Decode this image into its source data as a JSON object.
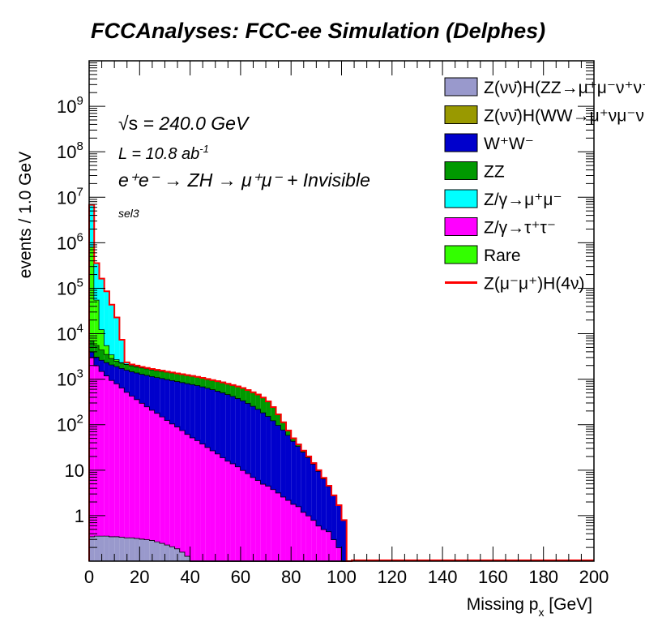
{
  "chart_data": {
    "type": "bar",
    "stacked": true,
    "log_y": true,
    "title": "FCCAnalyses: FCC-ee Simulation (Delphes)",
    "xlabel": "Missing p",
    "xlabel_sub": "x",
    "xlabel_unit": "[GeV]",
    "ylabel": "events / 1.0 GeV",
    "xlim": [
      0,
      200
    ],
    "ylim": [
      0.1,
      10000000000
    ],
    "x_ticks": [
      "0",
      "20",
      "40",
      "60",
      "80",
      "100",
      "120",
      "140",
      "160",
      "180",
      "200"
    ],
    "y_ticks": [
      {
        "base": "10",
        "exp": "9",
        "value": 1000000000
      },
      {
        "base": "10",
        "exp": "8",
        "value": 100000000
      },
      {
        "base": "10",
        "exp": "7",
        "value": 10000000
      },
      {
        "base": "10",
        "exp": "6",
        "value": 1000000
      },
      {
        "base": "10",
        "exp": "5",
        "value": 100000
      },
      {
        "base": "10",
        "exp": "4",
        "value": 10000
      },
      {
        "base": "10",
        "exp": "3",
        "value": 1000
      },
      {
        "base": "10",
        "exp": "2",
        "value": 100
      },
      {
        "base": "10",
        "exp": "",
        "value": 10
      },
      {
        "base": "1",
        "exp": "",
        "value": 1
      }
    ],
    "annotations": {
      "sqrts_prefix": "√s",
      "sqrts_rest": " = 240.0 GeV",
      "lumi_main": "L = 10.8 ab",
      "lumi_exp": "-1",
      "process": "e⁺e⁻ → ZH → μ⁺μ⁻ + Invisible",
      "selection": "sel3"
    },
    "bin_edges_note": "bins of 2 GeV, x from 0 to 104",
    "x": [
      0,
      2,
      4,
      6,
      8,
      10,
      12,
      14,
      16,
      18,
      20,
      22,
      24,
      26,
      28,
      30,
      32,
      34,
      36,
      38,
      40,
      42,
      44,
      46,
      48,
      50,
      52,
      54,
      56,
      58,
      60,
      62,
      64,
      66,
      68,
      70,
      72,
      74,
      76,
      78,
      80,
      82,
      84,
      86,
      88,
      90,
      92,
      94,
      96,
      98,
      100,
      102
    ],
    "series": [
      {
        "name": "Z(νν̄)H(ZZ→μ⁺μ⁻ν⁺ν⁻)",
        "color": "#9999cc",
        "values": [
          0.35,
          0.36,
          0.36,
          0.36,
          0.35,
          0.35,
          0.34,
          0.33,
          0.33,
          0.32,
          0.31,
          0.3,
          0.29,
          0.27,
          0.25,
          0.23,
          0.21,
          0.19,
          0.16,
          0.13,
          0.1,
          0,
          0,
          0,
          0,
          0,
          0,
          0,
          0,
          0,
          0,
          0,
          0,
          0,
          0,
          0,
          0,
          0,
          0,
          0,
          0,
          0,
          0,
          0,
          0,
          0,
          0,
          0,
          0,
          0,
          0,
          0
        ]
      },
      {
        "name": "Z(νν̄)H(WW→μ⁺νμ⁻ν)",
        "color": "#999900",
        "values": [
          0,
          0,
          0,
          0,
          0,
          0,
          0,
          0,
          0,
          0,
          0,
          0,
          0,
          0,
          0,
          0,
          0,
          0,
          0,
          0,
          0,
          0,
          0,
          0,
          0,
          0,
          0,
          0,
          0,
          0,
          0,
          0,
          0,
          0,
          0,
          0,
          0,
          0,
          0,
          0,
          0,
          0,
          0,
          0,
          0,
          0,
          0,
          0,
          0,
          0,
          0,
          0
        ]
      },
      {
        "name": "Z/γ→τ⁺τ⁻",
        "color": "#ff00ff",
        "values": [
          3000,
          2000,
          1500,
          1200,
          950,
          800,
          650,
          520,
          430,
          360,
          300,
          250,
          210,
          180,
          150,
          125,
          105,
          90,
          75,
          62,
          52,
          45,
          38,
          32,
          27,
          23,
          19,
          16,
          14,
          12,
          10,
          8.5,
          7,
          6,
          5,
          4.5,
          3.8,
          3.2,
          2.6,
          2.2,
          1.8,
          1.6,
          1.2,
          1.0,
          0.8,
          0.6,
          0.5,
          0.45,
          0.3,
          0.2,
          0,
          0
        ]
      },
      {
        "name": "W⁺W⁻",
        "color": "#0000cc",
        "values": [
          1000,
          1100,
          1150,
          1150,
          1140,
          1120,
          1100,
          1080,
          1050,
          1030,
          1000,
          980,
          950,
          920,
          900,
          870,
          840,
          810,
          780,
          750,
          720,
          690,
          650,
          610,
          570,
          530,
          490,
          450,
          410,
          370,
          330,
          290,
          250,
          215,
          180,
          150,
          120,
          95,
          75,
          57,
          42,
          32,
          24,
          18,
          13,
          9,
          6,
          4,
          2.5,
          1.5,
          0.8,
          0
        ]
      },
      {
        "name": "ZZ",
        "color": "#009900",
        "values": [
          3000,
          2500,
          1800,
          1200,
          800,
          600,
          550,
          530,
          520,
          510,
          500,
          490,
          480,
          470,
          460,
          450,
          440,
          430,
          420,
          410,
          400,
          390,
          380,
          370,
          360,
          350,
          340,
          330,
          320,
          310,
          300,
          280,
          260,
          240,
          210,
          170,
          120,
          70,
          35,
          15,
          6,
          3,
          1.5,
          0.8,
          0.4,
          0.2,
          0.1,
          0,
          0,
          0,
          0,
          0
        ]
      },
      {
        "name": "Z/γ→μ⁺μ⁻",
        "color": "#00ffff",
        "values": [
          6000000,
          300000,
          150000,
          80000,
          40000,
          20000,
          5000,
          200,
          100,
          80,
          60,
          50,
          40,
          30,
          25,
          20,
          15,
          10,
          8,
          6,
          4,
          3,
          2,
          1,
          0.5,
          0.3,
          0.2,
          0.1,
          0,
          0,
          0,
          0,
          0,
          0,
          0,
          0,
          0,
          0,
          0,
          0,
          0,
          0,
          0,
          0,
          0,
          0,
          0,
          0,
          0,
          0,
          0,
          0
        ]
      },
      {
        "name": "Rare",
        "color": "#33ff00",
        "values": [
          800000,
          50000,
          8000,
          2000,
          600,
          200,
          50,
          20,
          10,
          5,
          3,
          2,
          1,
          1,
          1,
          0.8,
          0.6,
          0.5,
          0.4,
          0.3,
          0.2,
          0.2,
          0.1,
          0.1,
          0.1,
          0.1,
          0.1,
          0.1,
          0.1,
          0.1,
          0.1,
          0.1,
          0.1,
          0.1,
          0.1,
          0.1,
          0.2,
          0.3,
          0.3,
          0.3,
          0.4,
          0.2,
          0.2,
          0.2,
          0.1,
          0.2,
          0.2,
          0.1,
          0,
          0,
          0,
          0
        ]
      },
      {
        "name": "Z(μ⁻μ⁺)H(4ν)",
        "color": "#ff0000",
        "style": "line",
        "values": [
          0,
          0,
          0,
          0,
          0,
          0,
          0,
          0,
          0,
          0,
          0,
          0,
          0,
          0,
          0,
          0,
          0,
          0,
          0,
          0,
          0,
          0,
          0,
          0,
          0,
          0,
          0,
          0,
          0,
          0,
          0,
          0,
          0,
          0,
          0,
          0,
          0,
          0,
          0,
          0,
          0,
          0,
          0,
          0,
          0,
          0,
          0,
          0,
          0,
          0,
          0,
          0
        ]
      }
    ],
    "legend": {
      "position": "top-right",
      "entries": [
        {
          "label": "Z(νν̄)H(ZZ→μ⁺μ⁻ν⁺ν⁻",
          "color": "#9999cc",
          "kind": "box"
        },
        {
          "label": "Z(νν̄)H(WW→μ⁺νμ⁻ν",
          "color": "#999900",
          "kind": "box"
        },
        {
          "label": "W⁺W⁻",
          "color": "#0000cc",
          "kind": "box"
        },
        {
          "label": "ZZ",
          "color": "#009900",
          "kind": "box"
        },
        {
          "label": "Z/γ→μ⁺μ⁻",
          "color": "#00ffff",
          "kind": "box"
        },
        {
          "label": "Z/γ→τ⁺τ⁻",
          "color": "#ff00ff",
          "kind": "box"
        },
        {
          "label": "Rare",
          "color": "#33ff00",
          "kind": "box"
        },
        {
          "label": "Z(μ⁻μ⁺)H(4ν)",
          "color": "#ff0000",
          "kind": "line"
        }
      ]
    },
    "grid": false
  }
}
